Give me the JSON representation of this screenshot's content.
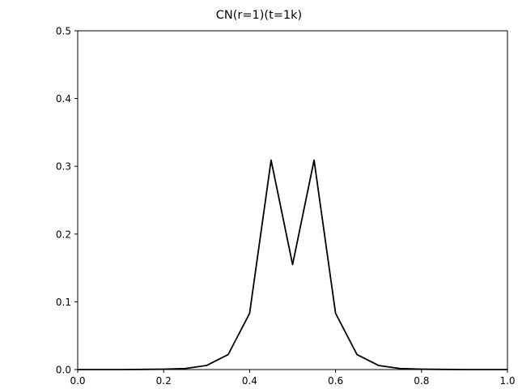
{
  "chart_data": {
    "type": "line",
    "title": "CN(r=1)(t=1k)",
    "xlabel": "",
    "ylabel": "",
    "xlim": [
      0.0,
      1.0
    ],
    "ylim": [
      0.0,
      0.5
    ],
    "grid": false,
    "xticks": [
      "0.0",
      "0.2",
      "0.4",
      "0.6",
      "0.8",
      "1.0"
    ],
    "yticks": [
      "0.0",
      "0.1",
      "0.2",
      "0.3",
      "0.4",
      "0.5"
    ],
    "series": [
      {
        "color": "#000000",
        "x": [
          0.0,
          0.05,
          0.1,
          0.15,
          0.2,
          0.25,
          0.3,
          0.35,
          0.4,
          0.45,
          0.5,
          0.55,
          0.6,
          0.65,
          0.7,
          0.75,
          0.8,
          0.85,
          0.9,
          0.95,
          1.0
        ],
        "y": [
          0.0,
          0.0,
          0.0,
          0.0002,
          0.0005,
          0.0015,
          0.006,
          0.022,
          0.083,
          0.309,
          0.155,
          0.309,
          0.083,
          0.022,
          0.006,
          0.0015,
          0.0005,
          0.0002,
          0.0,
          0.0,
          0.0
        ]
      }
    ]
  }
}
